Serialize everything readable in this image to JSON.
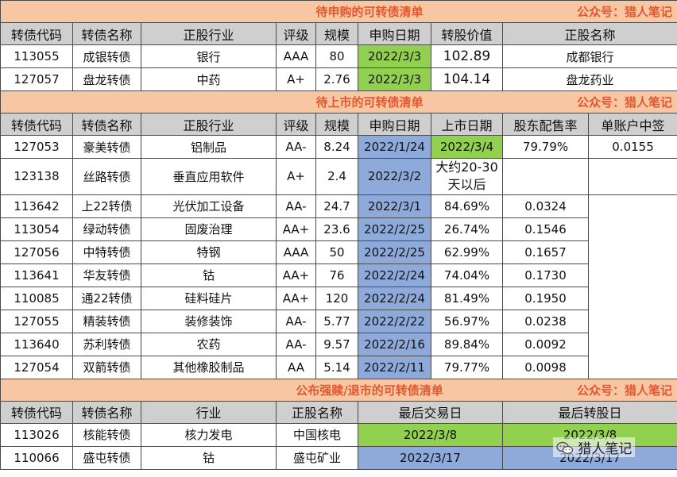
{
  "section1": {
    "title": "待申购的可转债清单",
    "wechat": "公众号：猎人笔记",
    "headers": [
      "转债代码",
      "转债名称",
      "正股行业",
      "评级",
      "规模",
      "申购日期",
      "转股价值",
      "正股名称"
    ],
    "rows": [
      [
        "113055",
        "成银转债",
        "银行",
        "AAA",
        "80",
        "2022/3/3",
        "102.89",
        "成都银行"
      ],
      [
        "127057",
        "盘龙转债",
        "中药",
        "A+",
        "2.76",
        "2022/3/3",
        "104.14",
        "盘龙药业"
      ]
    ]
  },
  "section2": {
    "title": "待上市的可转债清单",
    "wechat": "公众号：猎人笔记",
    "headers": [
      "转债代码",
      "转债名称",
      "正股行业",
      "评级",
      "规模",
      "申购日期",
      "上市日期",
      "股东配售率",
      "单账户中签"
    ],
    "first_row": [
      "127053",
      "豪美转债",
      "铝制品",
      "AA-",
      "8.24",
      "2022/1/24",
      "2022/3/4",
      "79.79%",
      "0.0155"
    ],
    "second_row": [
      "123138",
      "丝路转债",
      "垂直应用软件",
      "A+",
      "2.4",
      "2022/3/2",
      "",
      ""
    ],
    "merged_listing_note": "大约20-30天以后",
    "rows": [
      [
        "113642",
        "上22转债",
        "光伏加工设备",
        "AA-",
        "24.7",
        "2022/3/1",
        "84.69%",
        "0.0324"
      ],
      [
        "113054",
        "绿动转债",
        "固废治理",
        "AA+",
        "23.6",
        "2022/2/25",
        "26.74%",
        "0.1546"
      ],
      [
        "127056",
        "中特转债",
        "特钢",
        "AAA",
        "50",
        "2022/2/25",
        "62.99%",
        "0.1657"
      ],
      [
        "113641",
        "华友转债",
        "钴",
        "AA+",
        "76",
        "2022/2/24",
        "74.04%",
        "0.1730"
      ],
      [
        "110085",
        "通22转债",
        "硅料硅片",
        "AA+",
        "120",
        "2022/2/24",
        "81.49%",
        "0.1950"
      ],
      [
        "127055",
        "精装转债",
        "装修装饰",
        "AA-",
        "5.77",
        "2022/2/22",
        "56.97%",
        "0.0238"
      ],
      [
        "113640",
        "苏利转债",
        "农药",
        "AA-",
        "9.57",
        "2022/2/16",
        "89.84%",
        "0.0092"
      ],
      [
        "127054",
        "双箭转债",
        "其他橡胶制品",
        "AA",
        "5.14",
        "2022/2/11",
        "79.77%",
        "0.0098"
      ]
    ]
  },
  "section3": {
    "title": "公布强赎/退市的可转债清单",
    "wechat": "公众号：猎人笔记",
    "headers": [
      "转债代码",
      "转债名称",
      "行业",
      "正股名称",
      "最后交易日",
      "最后转股日"
    ],
    "rows": [
      [
        "113026",
        "核能转债",
        "核力发电",
        "中国核电",
        "2022/3/8",
        "2022/3/8"
      ],
      [
        "110066",
        "盛屯转债",
        "钴",
        "盛屯矿业",
        "2022/3/17",
        "2022/3/17"
      ]
    ]
  },
  "watermark": "猎人笔记",
  "colors": {
    "banner_bg": "#f7c7a4",
    "banner_text": "#e4572e",
    "header_bg": "#cfcfcf",
    "green": "#92d050",
    "blue": "#8eaadb"
  }
}
